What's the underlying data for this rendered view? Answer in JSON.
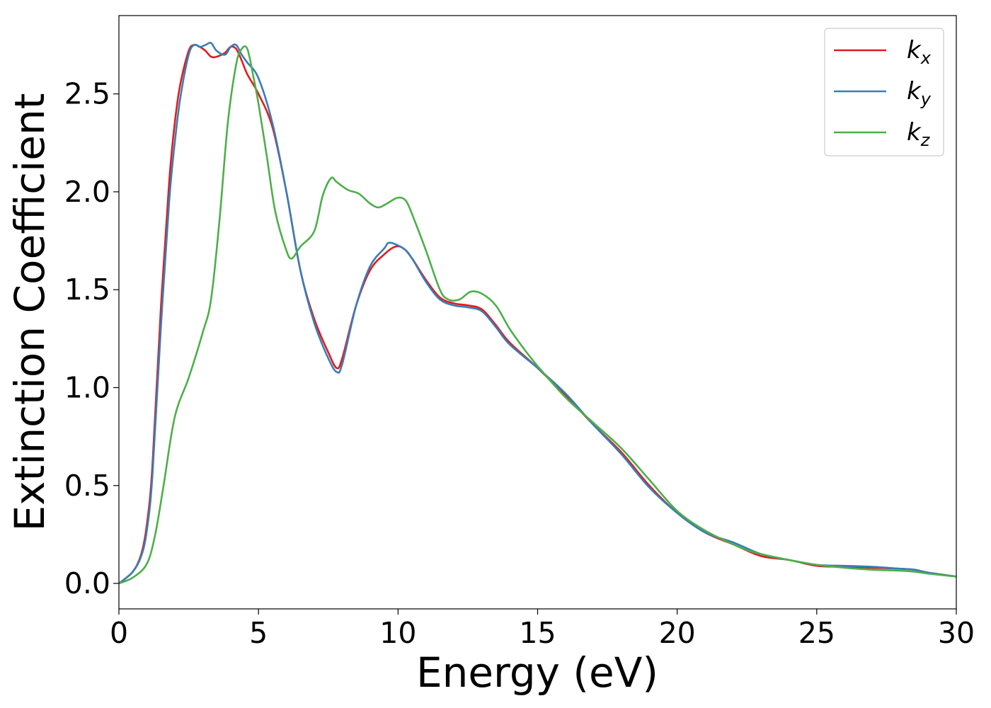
{
  "chart_data": {
    "type": "line",
    "xlabel": "Energy (eV)",
    "ylabel": "Extinction Coefficient",
    "xlim": [
      0,
      30
    ],
    "ylim": [
      -0.13,
      2.9
    ],
    "xticks": [
      "0",
      "5",
      "10",
      "15",
      "20",
      "25",
      "30"
    ],
    "yticks": [
      "0.0",
      "0.5",
      "1.0",
      "1.5",
      "2.0",
      "2.5"
    ],
    "grid": false,
    "legend_position": "top-right",
    "series": [
      {
        "name": "k_x",
        "legend_base": "k",
        "legend_sub": "x",
        "color": "#e41a1c",
        "x": [
          0,
          0.5,
          0.8,
          1.0,
          1.2,
          1.5,
          1.8,
          2.0,
          2.2,
          2.5,
          2.7,
          2.9,
          3.1,
          3.3,
          3.5,
          3.8,
          4.0,
          4.2,
          4.4,
          4.6,
          5.0,
          5.5,
          6.0,
          6.5,
          7.0,
          7.5,
          7.8,
          8.0,
          8.5,
          9.0,
          9.5,
          9.9,
          10.2,
          10.5,
          11.0,
          11.5,
          12.0,
          12.5,
          13.0,
          13.5,
          14.0,
          15.0,
          16.0,
          17.0,
          18.0,
          19.0,
          20.0,
          21.0,
          22.0,
          23.0,
          24.0,
          25.0,
          26.0,
          27.0,
          28.0,
          28.5,
          29.0,
          30.0
        ],
        "y": [
          0.0,
          0.06,
          0.15,
          0.3,
          0.6,
          1.4,
          2.05,
          2.35,
          2.55,
          2.72,
          2.75,
          2.74,
          2.72,
          2.69,
          2.69,
          2.71,
          2.74,
          2.73,
          2.67,
          2.6,
          2.5,
          2.33,
          2.0,
          1.6,
          1.35,
          1.18,
          1.1,
          1.15,
          1.42,
          1.6,
          1.68,
          1.72,
          1.71,
          1.66,
          1.55,
          1.46,
          1.43,
          1.42,
          1.4,
          1.32,
          1.23,
          1.1,
          0.96,
          0.81,
          0.67,
          0.5,
          0.36,
          0.26,
          0.2,
          0.14,
          0.12,
          0.09,
          0.085,
          0.08,
          0.075,
          0.07,
          0.055,
          0.035
        ]
      },
      {
        "name": "k_y",
        "legend_base": "k",
        "legend_sub": "y",
        "color": "#377eb8",
        "x": [
          0,
          0.5,
          0.8,
          1.0,
          1.2,
          1.5,
          1.8,
          2.0,
          2.2,
          2.5,
          2.7,
          2.9,
          3.1,
          3.3,
          3.5,
          3.8,
          4.0,
          4.2,
          4.4,
          4.6,
          5.0,
          5.5,
          6.0,
          6.5,
          7.0,
          7.5,
          7.8,
          8.0,
          8.5,
          9.0,
          9.5,
          9.7,
          10.2,
          10.5,
          11.0,
          11.5,
          12.0,
          12.5,
          13.0,
          13.5,
          14.0,
          15.0,
          16.0,
          17.0,
          18.0,
          19.0,
          20.0,
          21.0,
          22.0,
          23.0,
          24.0,
          25.0,
          26.0,
          27.0,
          28.0,
          28.5,
          29.0,
          30.0
        ],
        "y": [
          0.0,
          0.06,
          0.14,
          0.27,
          0.55,
          1.3,
          1.95,
          2.25,
          2.48,
          2.7,
          2.75,
          2.74,
          2.75,
          2.76,
          2.72,
          2.7,
          2.74,
          2.75,
          2.7,
          2.66,
          2.58,
          2.35,
          2.0,
          1.6,
          1.33,
          1.15,
          1.08,
          1.12,
          1.42,
          1.62,
          1.71,
          1.74,
          1.71,
          1.66,
          1.54,
          1.45,
          1.42,
          1.41,
          1.39,
          1.31,
          1.22,
          1.1,
          0.97,
          0.81,
          0.66,
          0.49,
          0.36,
          0.26,
          0.21,
          0.15,
          0.12,
          0.095,
          0.09,
          0.085,
          0.075,
          0.07,
          0.055,
          0.035
        ]
      },
      {
        "name": "k_z",
        "legend_base": "k",
        "legend_sub": "z",
        "color": "#4daf4a",
        "x": [
          0,
          0.5,
          1.0,
          1.3,
          1.6,
          2.0,
          2.5,
          3.0,
          3.3,
          3.6,
          3.9,
          4.2,
          4.4,
          4.6,
          4.8,
          5.0,
          5.3,
          5.6,
          6.0,
          6.2,
          6.5,
          7.0,
          7.3,
          7.6,
          7.8,
          8.2,
          8.6,
          9.0,
          9.3,
          9.6,
          10.0,
          10.3,
          10.6,
          11.0,
          11.5,
          11.8,
          12.2,
          12.6,
          13.0,
          13.5,
          14.0,
          14.5,
          15.0,
          16.0,
          17.0,
          18.0,
          19.0,
          20.0,
          21.0,
          22.0,
          22.5,
          23.0,
          24.0,
          25.0,
          26.0,
          27.0,
          28.0,
          28.5,
          29.0,
          30.0
        ],
        "y": [
          0.0,
          0.03,
          0.1,
          0.25,
          0.5,
          0.85,
          1.05,
          1.28,
          1.45,
          1.85,
          2.35,
          2.65,
          2.73,
          2.73,
          2.6,
          2.45,
          2.18,
          1.9,
          1.7,
          1.66,
          1.72,
          1.8,
          1.98,
          2.07,
          2.05,
          2.01,
          1.99,
          1.94,
          1.92,
          1.94,
          1.97,
          1.95,
          1.85,
          1.7,
          1.5,
          1.45,
          1.45,
          1.49,
          1.48,
          1.42,
          1.3,
          1.2,
          1.11,
          0.95,
          0.82,
          0.69,
          0.53,
          0.37,
          0.27,
          0.2,
          0.17,
          0.15,
          0.12,
          0.095,
          0.08,
          0.07,
          0.065,
          0.06,
          0.05,
          0.035
        ]
      }
    ]
  }
}
